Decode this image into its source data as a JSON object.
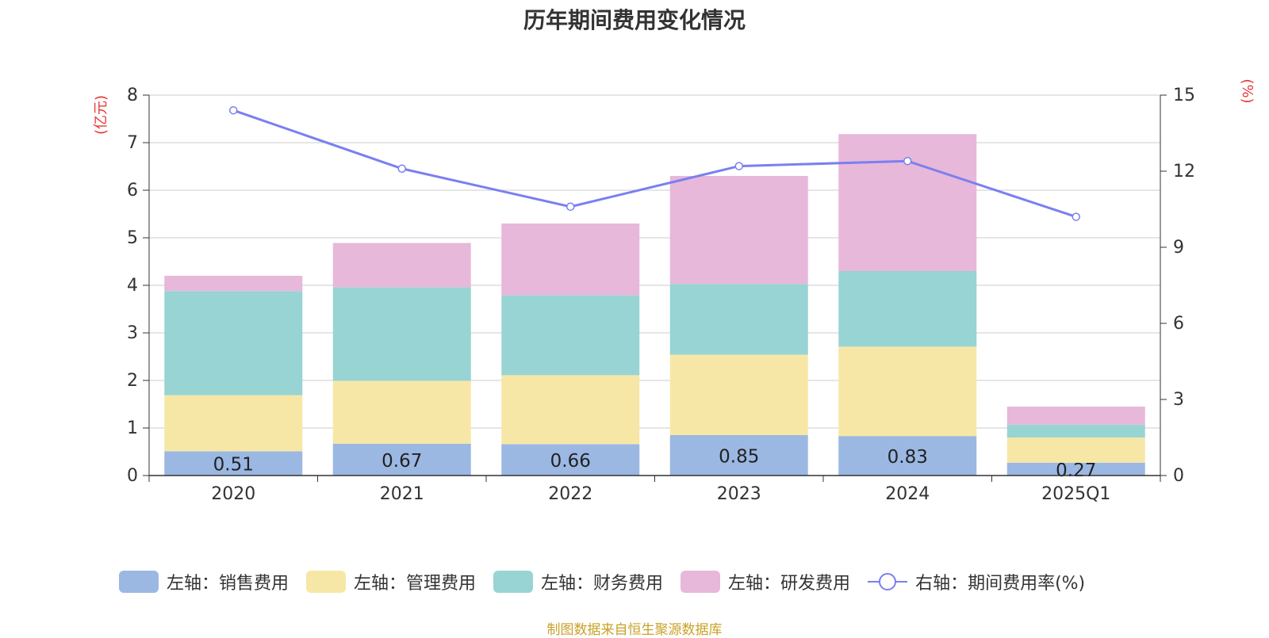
{
  "title": "历年期间费用变化情况",
  "source": "制图数据来自恒生聚源数据库",
  "chart_data": {
    "type": "bar",
    "stacked": true,
    "title": "历年期间费用变化情况",
    "categories": [
      "2020",
      "2021",
      "2022",
      "2023",
      "2024",
      "2025Q1"
    ],
    "y_left": {
      "label": "(亿元)",
      "ylim": [
        0,
        8
      ],
      "ticks": [
        0,
        1,
        2,
        3,
        4,
        5,
        6,
        7,
        8
      ]
    },
    "y_right": {
      "label": "(%)",
      "ylim": [
        0,
        15
      ],
      "ticks": [
        0,
        3,
        6,
        9,
        12,
        15
      ]
    },
    "grid": true,
    "legend_position": "bottom",
    "series": [
      {
        "name": "左轴：销售费用",
        "axis": "left",
        "color": "#9bb8e3",
        "values": [
          0.51,
          0.67,
          0.66,
          0.85,
          0.83,
          0.27
        ],
        "labels": [
          "0.51",
          "0.67",
          "0.66",
          "0.85",
          "0.83",
          "0.27"
        ]
      },
      {
        "name": "左轴：管理费用",
        "axis": "left",
        "color": "#f7e7a6",
        "values": [
          1.18,
          1.32,
          1.45,
          1.69,
          1.88,
          0.53
        ]
      },
      {
        "name": "左轴：财务费用",
        "axis": "left",
        "color": "#98d4d4",
        "values": [
          2.19,
          1.97,
          1.68,
          1.49,
          1.59,
          0.27
        ]
      },
      {
        "name": "左轴：研发费用",
        "axis": "left",
        "color": "#e7b8da",
        "values": [
          0.32,
          0.93,
          1.51,
          2.27,
          2.88,
          0.38
        ]
      },
      {
        "name": "右轴：期间费用率(%)",
        "axis": "right",
        "type": "line",
        "color": "#7b7ff0",
        "values": [
          14.4,
          12.1,
          10.6,
          12.2,
          12.4,
          10.2
        ]
      }
    ]
  }
}
